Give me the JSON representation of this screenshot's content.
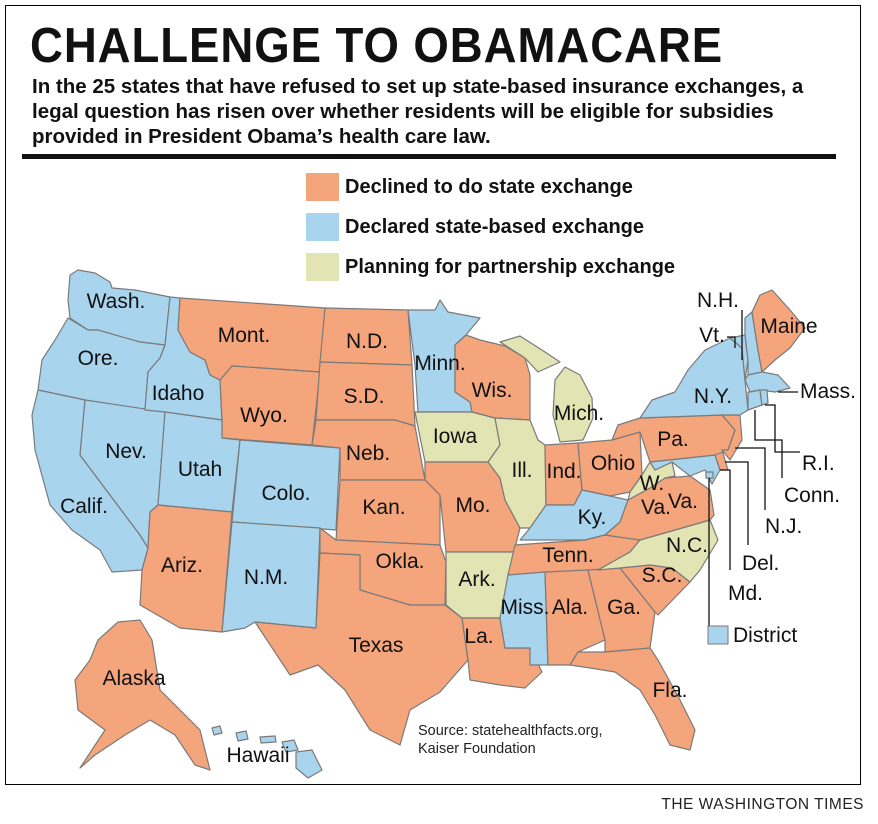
{
  "header": {
    "title": "CHALLENGE TO OBAMACARE",
    "subtitle": "In the 25 states that have refused to set up state-based insurance exchanges, a legal question has risen over whether residents will be eligible for subsidies provided in President Obama’s health care law."
  },
  "legend": {
    "declined": {
      "label": "Declined to do state exchange",
      "color": "#f4a57c"
    },
    "declared": {
      "label": "Declared state-based exchange",
      "color": "#a9d4ee"
    },
    "partnership": {
      "label": "Planning for partnership exchange",
      "color": "#e3e4b3"
    },
    "district": {
      "label": "District"
    }
  },
  "states": {
    "wa": {
      "label": "Wash.",
      "status": "declared"
    },
    "or": {
      "label": "Ore.",
      "status": "declared"
    },
    "ca": {
      "label": "Calif.",
      "status": "declared"
    },
    "nv": {
      "label": "Nev.",
      "status": "declared"
    },
    "id": {
      "label": "Idaho",
      "status": "declared"
    },
    "mt": {
      "label": "Mont.",
      "status": "declined"
    },
    "wy": {
      "label": "Wyo.",
      "status": "declined"
    },
    "ut": {
      "label": "Utah",
      "status": "declared"
    },
    "co": {
      "label": "Colo.",
      "status": "declared"
    },
    "az": {
      "label": "Ariz.",
      "status": "declined"
    },
    "nm": {
      "label": "N.M.",
      "status": "declared"
    },
    "nd": {
      "label": "N.D.",
      "status": "declined"
    },
    "sd": {
      "label": "S.D.",
      "status": "declined"
    },
    "ne": {
      "label": "Neb.",
      "status": "declined"
    },
    "ks": {
      "label": "Kan.",
      "status": "declined"
    },
    "ok": {
      "label": "Okla.",
      "status": "declined"
    },
    "tx": {
      "label": "Texas",
      "status": "declined"
    },
    "mn": {
      "label": "Minn.",
      "status": "declared"
    },
    "ia": {
      "label": "Iowa",
      "status": "partnership"
    },
    "mo": {
      "label": "Mo.",
      "status": "declined"
    },
    "ar": {
      "label": "Ark.",
      "status": "partnership"
    },
    "la": {
      "label": "La.",
      "status": "declined"
    },
    "wi": {
      "label": "Wis.",
      "status": "declined"
    },
    "il": {
      "label": "Ill.",
      "status": "partnership"
    },
    "mi": {
      "label": "Mich.",
      "status": "partnership"
    },
    "in": {
      "label": "Ind.",
      "status": "declined"
    },
    "oh": {
      "label": "Ohio",
      "status": "declined"
    },
    "ky": {
      "label": "Ky.",
      "status": "declared"
    },
    "tn": {
      "label": "Tenn.",
      "status": "declined"
    },
    "ms": {
      "label": "Miss.",
      "status": "declared"
    },
    "al": {
      "label": "Ala.",
      "status": "declined"
    },
    "ga": {
      "label": "Ga.",
      "status": "declined"
    },
    "fl": {
      "label": "Fla.",
      "status": "declined"
    },
    "sc": {
      "label": "S.C.",
      "status": "declined"
    },
    "nc": {
      "label": "N.C.",
      "status": "partnership"
    },
    "va": {
      "label": "Va.",
      "status": "declined"
    },
    "wv": {
      "label": "W. Va.",
      "label_line1": "W.",
      "label_line2": "Va.",
      "status": "partnership"
    },
    "pa": {
      "label": "Pa.",
      "status": "declined"
    },
    "ny": {
      "label": "N.Y.",
      "status": "declared"
    },
    "vt": {
      "label": "Vt.",
      "status": "declared"
    },
    "nh": {
      "label": "N.H.",
      "status": "declared"
    },
    "me": {
      "label": "Maine",
      "status": "declined"
    },
    "ma": {
      "label": "Mass.",
      "status": "declared"
    },
    "ri": {
      "label": "R.I.",
      "status": "declared"
    },
    "ct": {
      "label": "Conn.",
      "status": "declared"
    },
    "nj": {
      "label": "N.J.",
      "status": "declined"
    },
    "de": {
      "label": "Del.",
      "status": "declined"
    },
    "md": {
      "label": "Md.",
      "status": "declared"
    },
    "ak": {
      "label": "Alaska",
      "status": "declined"
    },
    "hi": {
      "label": "Hawaii",
      "status": "declared"
    }
  },
  "source": {
    "line1": "Source: statehealthfacts.org,",
    "line2": "Kaiser Foundation"
  },
  "credit": "THE WASHINGTON TIMES"
}
